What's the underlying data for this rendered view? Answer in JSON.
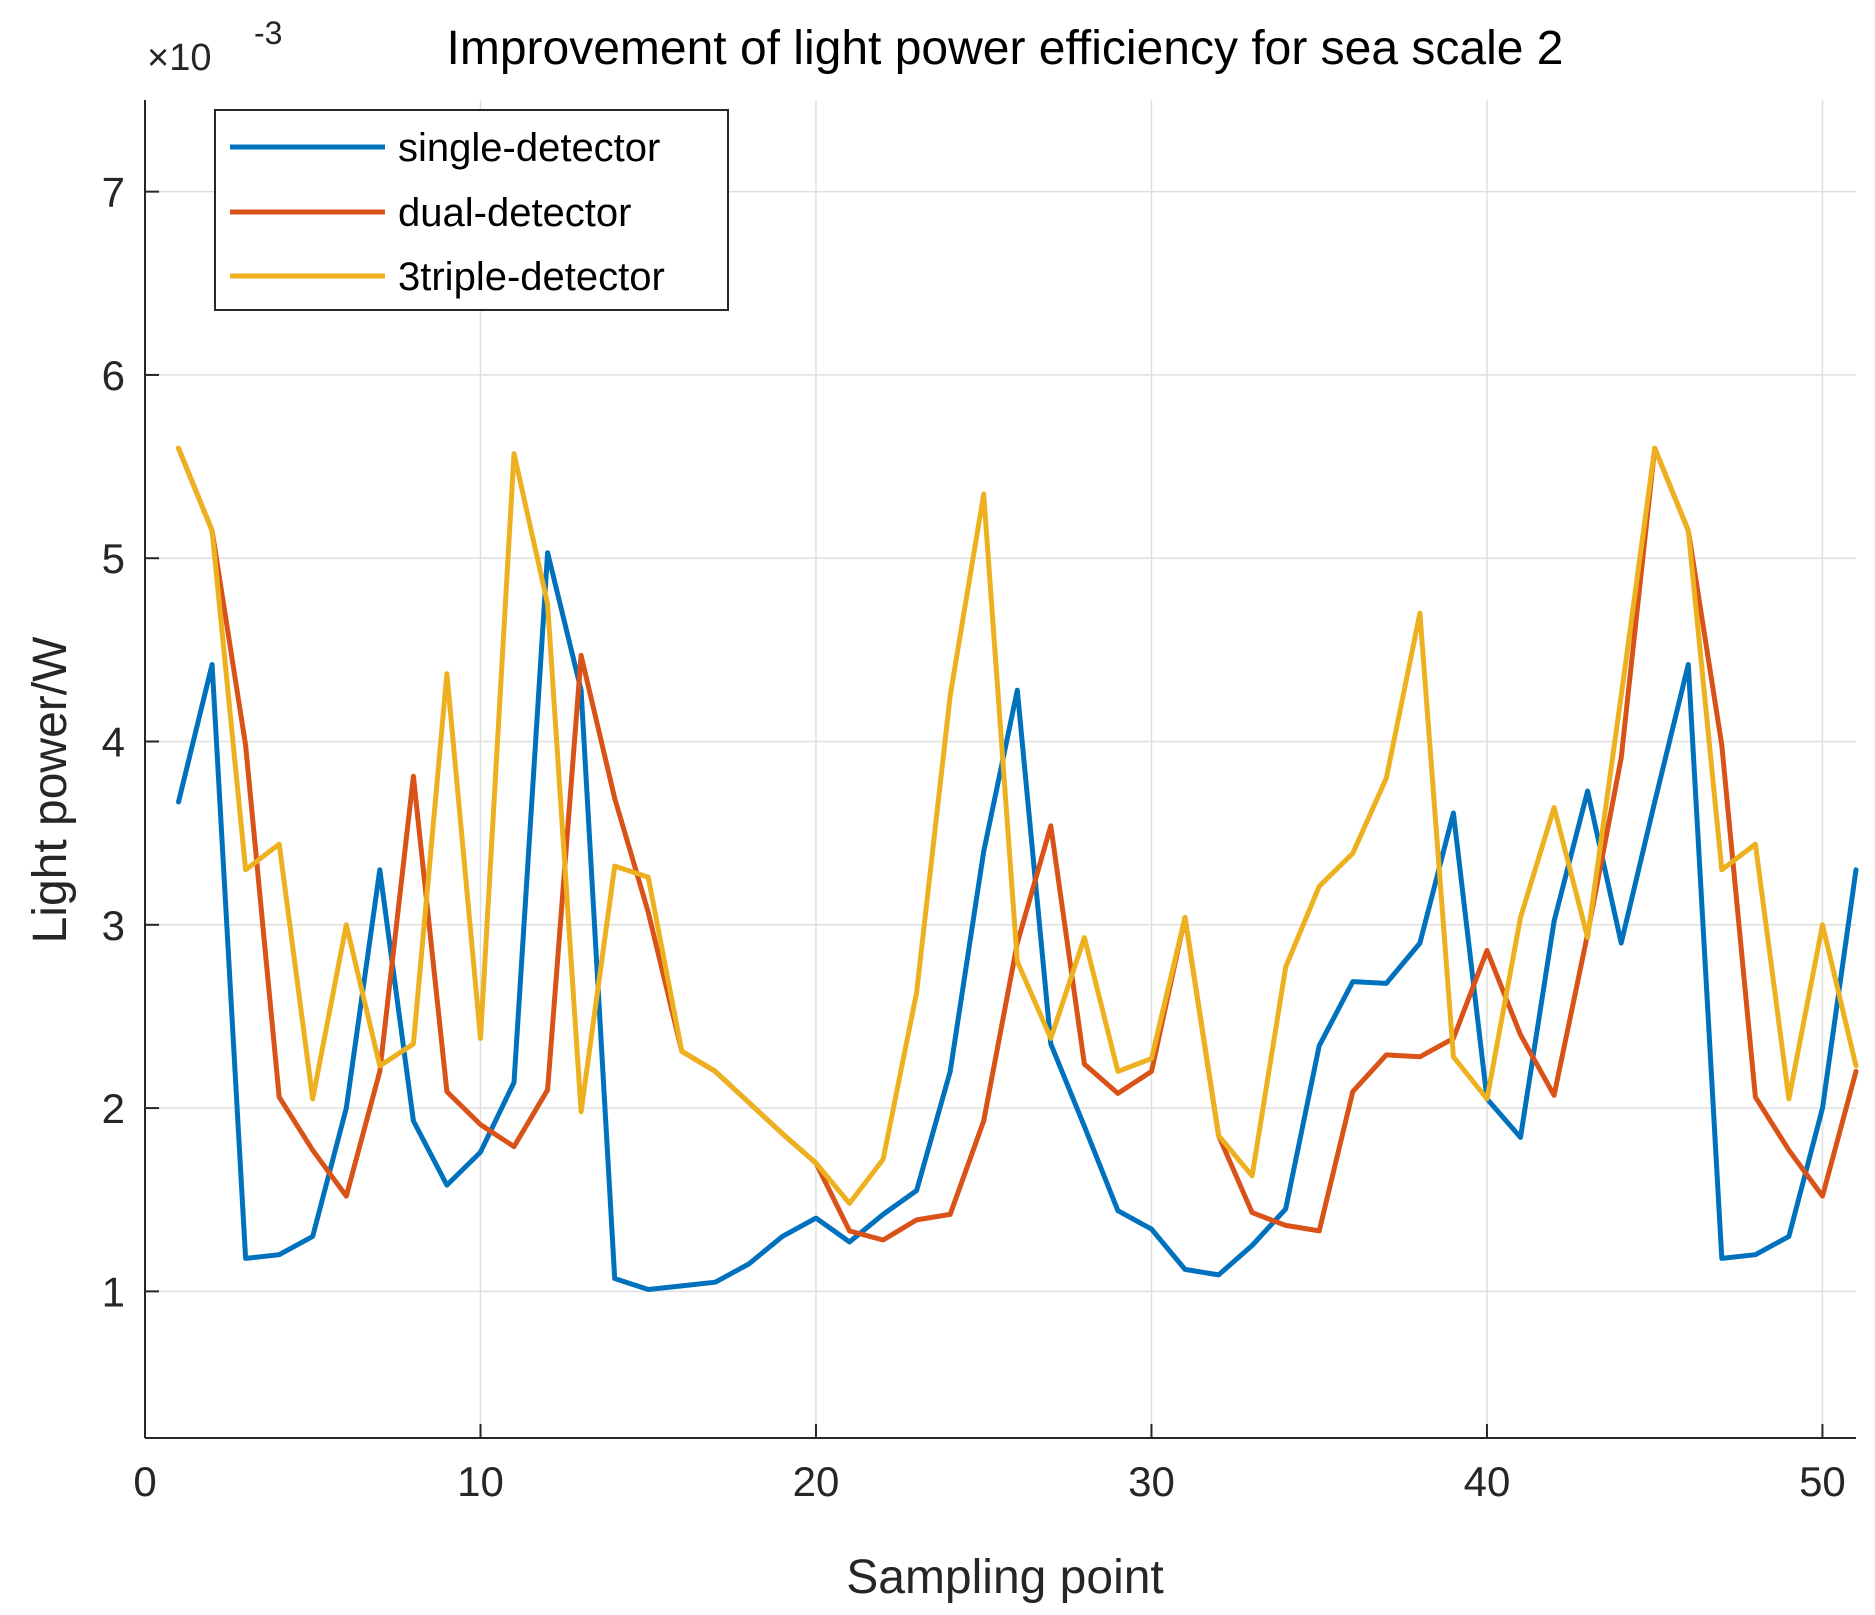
{
  "chart_data": {
    "type": "line",
    "title": "Improvement of light power efficiency for sea scale 2",
    "xlabel": "Sampling point",
    "ylabel": "Light power/W",
    "y_exponent": {
      "times": "×10",
      "power": "-3"
    },
    "xlim": [
      0,
      51
    ],
    "ylim": [
      0.2,
      7.5
    ],
    "xticks": [
      0,
      10,
      20,
      30,
      40,
      50
    ],
    "xtick_labels": [
      "0",
      "10",
      "20",
      "30",
      "40",
      "50"
    ],
    "yticks": [
      1,
      2,
      3,
      4,
      5,
      6,
      7
    ],
    "ytick_labels": [
      "1",
      "2",
      "3",
      "4",
      "5",
      "6",
      "7"
    ],
    "grid": true,
    "legend_position": "top-left",
    "x": [
      1,
      2,
      3,
      4,
      5,
      6,
      7,
      8,
      9,
      10,
      11,
      12,
      13,
      14,
      15,
      16,
      17,
      18,
      19,
      20,
      21,
      22,
      23,
      24,
      25,
      26,
      27,
      28,
      29,
      30,
      31,
      32,
      33,
      34,
      35,
      36,
      37,
      38,
      39,
      40,
      41,
      42,
      43,
      44,
      45,
      46,
      47,
      48,
      49,
      50,
      51
    ],
    "series": [
      {
        "name": "single-detector",
        "color": "#0072BD",
        "values": [
          3.67,
          4.42,
          1.18,
          1.2,
          1.3,
          2.0,
          3.3,
          1.93,
          1.58,
          1.76,
          2.14,
          5.03,
          4.28,
          1.07,
          1.01,
          1.03,
          1.05,
          1.15,
          1.3,
          1.4,
          1.27,
          1.42,
          1.55,
          2.2,
          3.4,
          4.28,
          2.35,
          1.9,
          1.44,
          1.34,
          1.12,
          1.09,
          1.25,
          1.45,
          2.34,
          2.69,
          2.68,
          2.9,
          3.61,
          2.05,
          1.84,
          3.02,
          3.73,
          2.9,
          3.67,
          4.42,
          1.18,
          1.2,
          1.3,
          2.0,
          3.3
        ]
      },
      {
        "name": "dual-detector",
        "color": "#D95319",
        "values": [
          5.6,
          5.15,
          3.98,
          2.06,
          1.77,
          1.52,
          2.2,
          3.81,
          2.09,
          1.91,
          1.79,
          2.1,
          4.47,
          3.69,
          3.07,
          2.31,
          2.2,
          2.03,
          1.86,
          1.7,
          1.33,
          1.28,
          1.39,
          1.42,
          1.93,
          2.9,
          3.54,
          2.24,
          2.08,
          2.2,
          3.04,
          1.85,
          1.43,
          1.36,
          1.33,
          2.09,
          2.29,
          2.28,
          2.38,
          2.86,
          2.4,
          2.07,
          2.95,
          3.91,
          5.6,
          5.15,
          3.98,
          2.06,
          1.77,
          1.52,
          2.2
        ]
      },
      {
        "name": "3triple-detector",
        "color": "#EDB120",
        "values": [
          5.6,
          5.15,
          3.3,
          3.44,
          2.05,
          3.0,
          2.23,
          2.35,
          4.37,
          2.38,
          5.57,
          4.75,
          1.98,
          3.32,
          3.26,
          2.31,
          2.2,
          2.03,
          1.86,
          1.7,
          1.48,
          1.72,
          2.63,
          4.25,
          5.35,
          2.8,
          2.38,
          2.93,
          2.2,
          2.27,
          3.04,
          1.85,
          1.63,
          2.77,
          3.21,
          3.39,
          3.8,
          4.7,
          2.28,
          2.05,
          3.04,
          3.64,
          2.93,
          4.25,
          5.6,
          5.15,
          3.3,
          3.44,
          2.05,
          3.0,
          2.23
        ]
      }
    ]
  }
}
